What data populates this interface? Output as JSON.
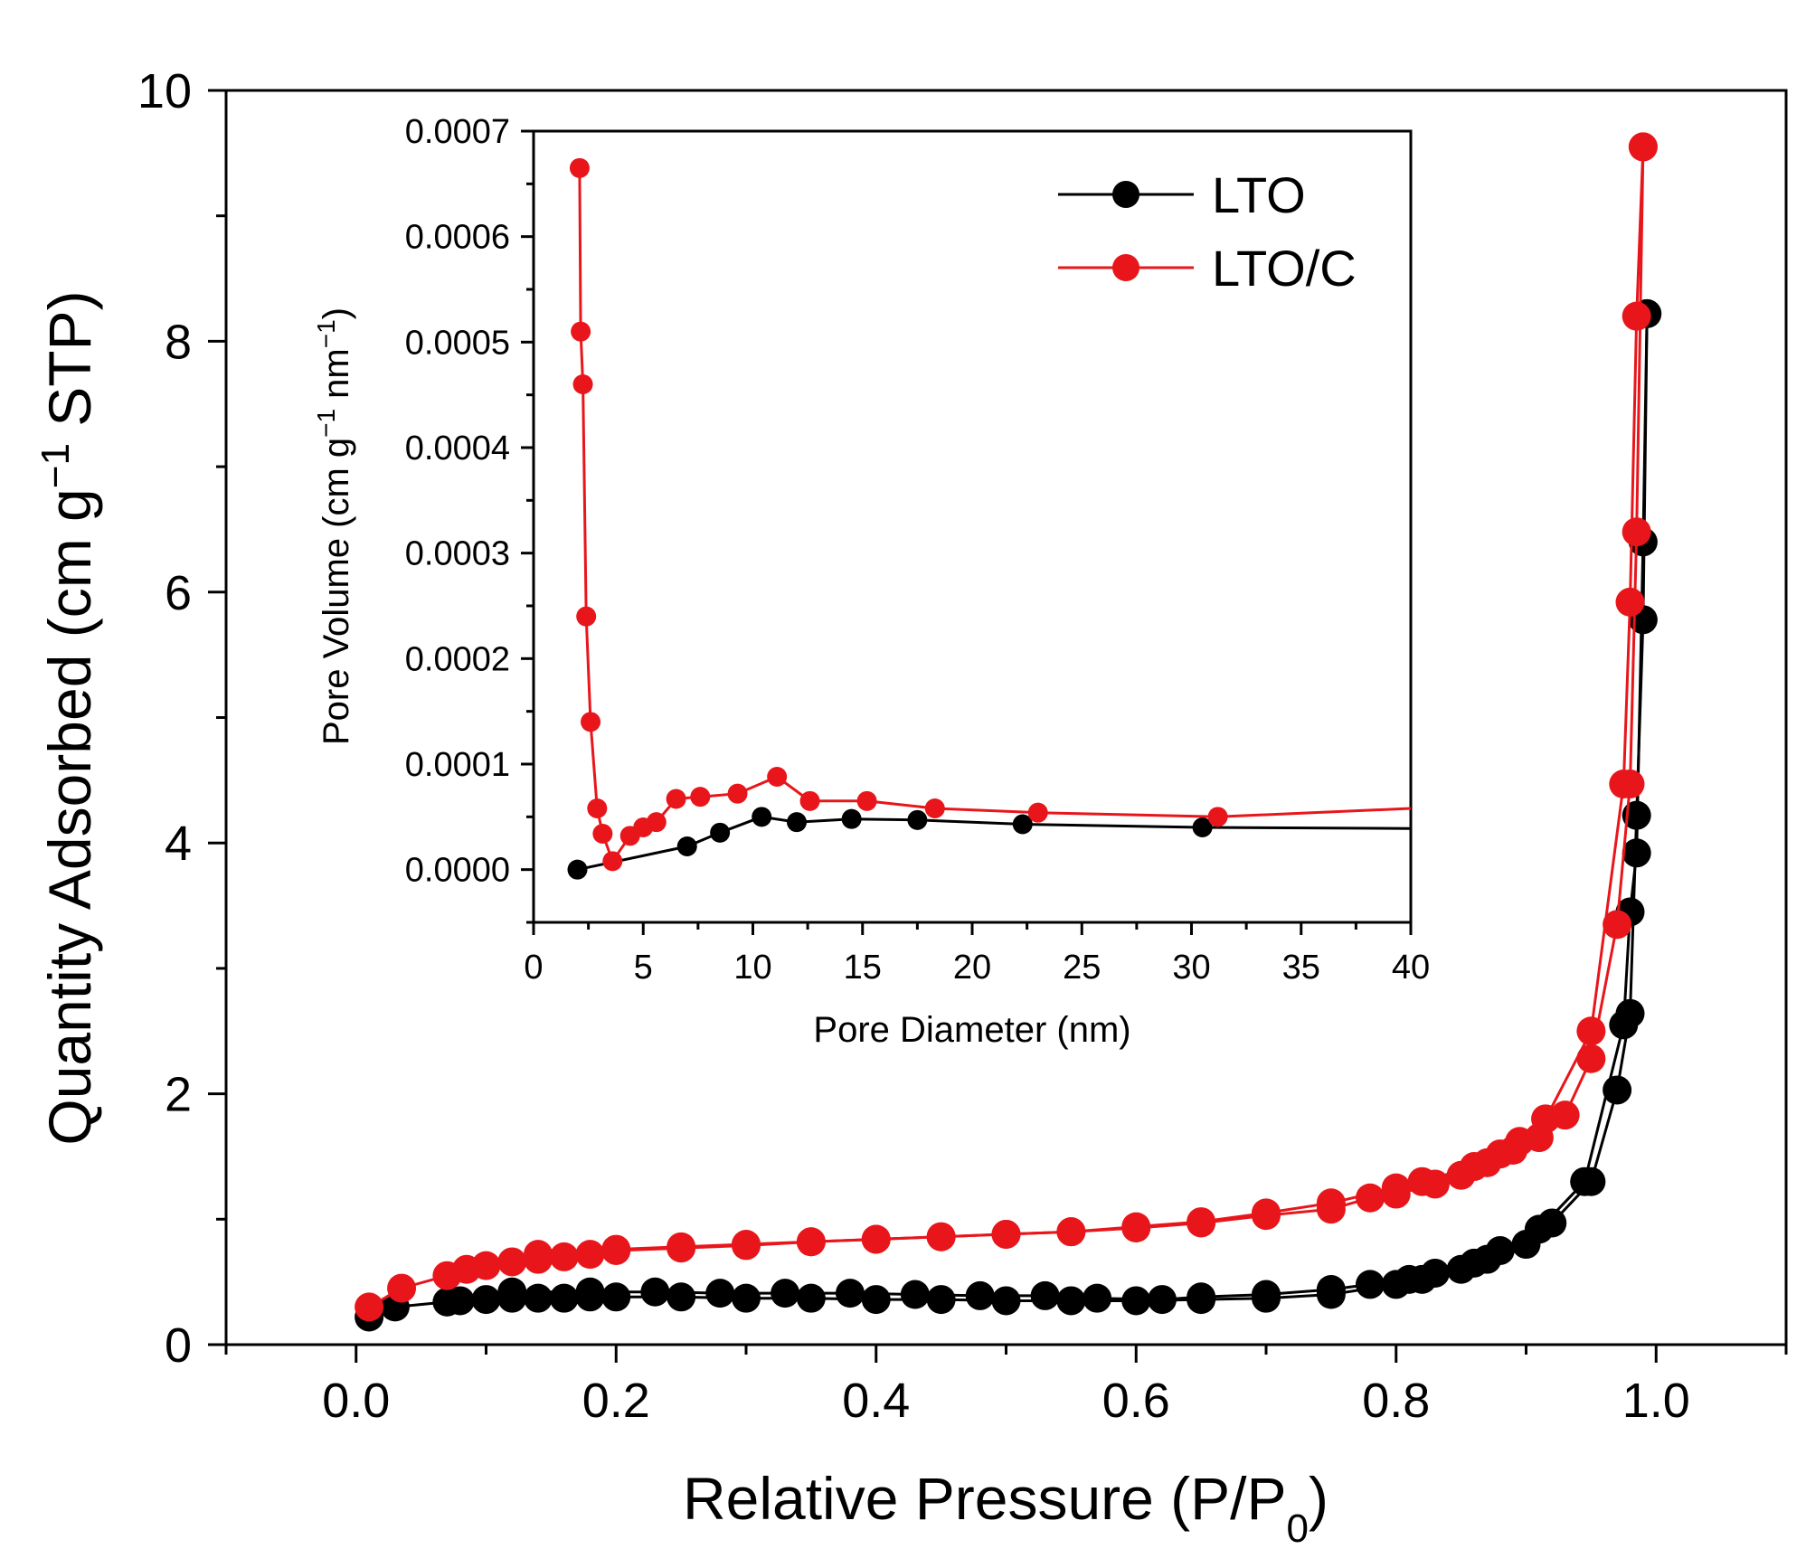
{
  "colors": {
    "LTO": "#000000",
    "LTO/C": "#e8161b"
  },
  "chart_data": [
    {
      "type": "scatter",
      "title": "",
      "xlabel": "Relative Pressure (P/P",
      "xlabel_sub": "0",
      "xlabel_end": ")",
      "ylabel": "Quantity Adsorbed (cm g",
      "ylabel_sup": "−1",
      "ylabel_end": " STP)",
      "xlim": [
        -0.1,
        1.1
      ],
      "ylim": [
        0,
        10
      ],
      "xticks": [
        "0.0",
        "0.2",
        "0.4",
        "0.6",
        "0.8",
        "1.0"
      ],
      "yticks": [
        "0",
        "2",
        "4",
        "6",
        "8",
        "10"
      ],
      "legend": {
        "position": "top-right",
        "entries": [
          "LTO",
          "LTO/C"
        ]
      },
      "series": [
        {
          "name": "LTO",
          "color": "#000000",
          "adsorption": {
            "x": [
              0.01,
              0.03,
              0.07,
              0.08,
              0.1,
              0.12,
              0.14,
              0.16,
              0.18,
              0.2,
              0.25,
              0.3,
              0.35,
              0.4,
              0.45,
              0.5,
              0.55,
              0.6,
              0.65,
              0.7,
              0.75,
              0.8,
              0.82,
              0.85,
              0.87,
              0.9,
              0.92,
              0.95,
              0.97,
              0.98,
              0.985,
              0.99,
              0.993
            ],
            "y": [
              0.22,
              0.3,
              0.34,
              0.35,
              0.36,
              0.37,
              0.37,
              0.37,
              0.38,
              0.38,
              0.38,
              0.37,
              0.37,
              0.36,
              0.36,
              0.35,
              0.35,
              0.35,
              0.36,
              0.37,
              0.4,
              0.48,
              0.52,
              0.6,
              0.68,
              0.8,
              0.97,
              1.3,
              2.03,
              2.64,
              4.22,
              5.78,
              8.22
            ]
          },
          "desorption": {
            "x": [
              0.993,
              0.99,
              0.985,
              0.98,
              0.975,
              0.945,
              0.91,
              0.88,
              0.86,
              0.83,
              0.81,
              0.78,
              0.75,
              0.7,
              0.65,
              0.62,
              0.57,
              0.53,
              0.48,
              0.43,
              0.38,
              0.33,
              0.28,
              0.23,
              0.18,
              0.12
            ],
            "y": [
              8.22,
              6.4,
              3.92,
              3.45,
              2.55,
              1.3,
              0.92,
              0.75,
              0.65,
              0.57,
              0.52,
              0.48,
              0.44,
              0.4,
              0.38,
              0.36,
              0.37,
              0.39,
              0.39,
              0.4,
              0.41,
              0.41,
              0.41,
              0.42,
              0.42,
              0.42
            ]
          }
        },
        {
          "name": "LTO/C",
          "color": "#e8161b",
          "adsorption": {
            "x": [
              0.01,
              0.035,
              0.07,
              0.085,
              0.1,
              0.12,
              0.14,
              0.16,
              0.18,
              0.2,
              0.25,
              0.3,
              0.35,
              0.4,
              0.45,
              0.5,
              0.55,
              0.6,
              0.65,
              0.7,
              0.75,
              0.78,
              0.8,
              0.83,
              0.85,
              0.87,
              0.89,
              0.91,
              0.93,
              0.95,
              0.97,
              0.98,
              0.985,
              0.99
            ],
            "y": [
              0.3,
              0.45,
              0.55,
              0.6,
              0.63,
              0.66,
              0.68,
              0.7,
              0.72,
              0.75,
              0.77,
              0.79,
              0.82,
              0.84,
              0.86,
              0.88,
              0.9,
              0.93,
              0.97,
              1.03,
              1.08,
              1.17,
              1.2,
              1.28,
              1.35,
              1.45,
              1.55,
              1.65,
              1.83,
              2.28,
              3.35,
              4.47,
              6.48,
              9.55
            ]
          },
          "desorption": {
            "x": [
              0.99,
              0.985,
              0.98,
              0.975,
              0.95,
              0.915,
              0.895,
              0.88,
              0.86,
              0.82,
              0.8,
              0.75,
              0.7,
              0.65,
              0.6,
              0.55,
              0.5,
              0.45,
              0.4,
              0.35,
              0.3,
              0.25,
              0.2,
              0.14
            ],
            "y": [
              9.55,
              8.2,
              5.92,
              4.47,
              2.5,
              1.8,
              1.62,
              1.52,
              1.42,
              1.3,
              1.25,
              1.13,
              1.05,
              0.98,
              0.94,
              0.9,
              0.88,
              0.86,
              0.84,
              0.82,
              0.8,
              0.78,
              0.76,
              0.72
            ]
          }
        }
      ]
    },
    {
      "type": "line",
      "title": "",
      "xlabel": "Pore Diameter (nm)",
      "ylabel": "Pore Volume (cm g",
      "ylabel_sup1": "−1",
      "ylabel_mid": " nm",
      "ylabel_sup2": "−1",
      "ylabel_end": ")",
      "xlim": [
        0,
        40
      ],
      "ylim": [
        -5e-05,
        0.0007
      ],
      "xticks": [
        "0",
        "5",
        "10",
        "15",
        "20",
        "25",
        "30",
        "35",
        "40"
      ],
      "yticks": [
        "0.0000",
        "0.0001",
        "0.0002",
        "0.0003",
        "0.0004",
        "0.0005",
        "0.0006",
        "0.0007"
      ],
      "series": [
        {
          "name": "LTO",
          "color": "#000000",
          "x": [
            2.0,
            7.0,
            8.5,
            10.4,
            12.0,
            14.5,
            17.5,
            22.3,
            30.5,
            40.0
          ],
          "y": [
            0.0,
            2.2e-05,
            3.5e-05,
            5e-05,
            4.5e-05,
            4.8e-05,
            4.7e-05,
            4.3e-05,
            4e-05,
            3.9e-05
          ],
          "markers": 9
        },
        {
          "name": "LTO/C",
          "color": "#e8161b",
          "x": [
            2.1,
            2.15,
            2.25,
            2.4,
            2.6,
            2.9,
            3.15,
            3.6,
            4.4,
            5.0,
            5.6,
            6.5,
            7.6,
            9.3,
            11.1,
            12.6,
            15.2,
            18.3,
            23.0,
            31.2,
            40.0
          ],
          "y": [
            0.000665,
            0.00051,
            0.00046,
            0.00024,
            0.00014,
            5.8e-05,
            3.4e-05,
            8e-06,
            3.2e-05,
            4e-05,
            4.5e-05,
            6.7e-05,
            6.9e-05,
            7.2e-05,
            8.8e-05,
            6.5e-05,
            6.5e-05,
            5.8e-05,
            5.4e-05,
            5e-05,
            5.8e-05
          ],
          "markers": 20
        }
      ]
    }
  ]
}
